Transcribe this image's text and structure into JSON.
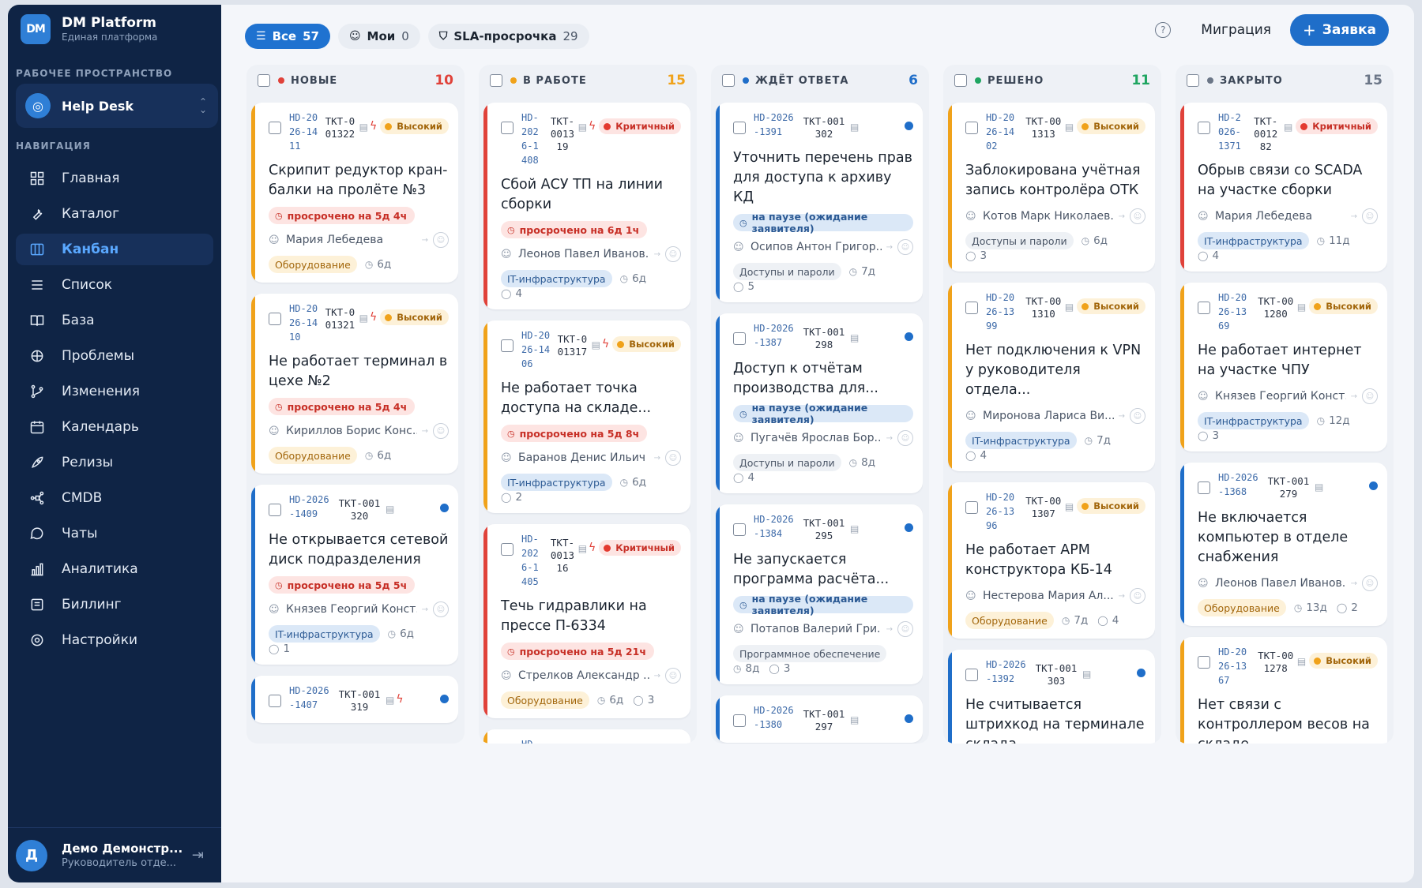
{
  "brand": {
    "logo": "DM",
    "title": "DM Platform",
    "subtitle": "Единая платформа"
  },
  "sidebar": {
    "workspace_label": "РАБОЧЕЕ ПРОСТРАНСТВО",
    "workspace_name": "Help Desk",
    "nav_label": "НАВИГАЦИЯ",
    "items": [
      {
        "label": "Главная",
        "icon": "grid-icon"
      },
      {
        "label": "Каталог",
        "icon": "wrench-icon"
      },
      {
        "label": "Канбан",
        "icon": "kanban-icon",
        "active": true
      },
      {
        "label": "Список",
        "icon": "list-icon"
      },
      {
        "label": "База",
        "icon": "book-icon"
      },
      {
        "label": "Проблемы",
        "icon": "bug-icon"
      },
      {
        "label": "Изменения",
        "icon": "branch-icon"
      },
      {
        "label": "Календарь",
        "icon": "calendar-icon"
      },
      {
        "label": "Релизы",
        "icon": "rocket-icon"
      },
      {
        "label": "CMDB",
        "icon": "network-icon"
      },
      {
        "label": "Чаты",
        "icon": "chat-icon"
      },
      {
        "label": "Аналитика",
        "icon": "bar-chart-icon"
      },
      {
        "label": "Биллинг",
        "icon": "receipt-icon"
      },
      {
        "label": "Настройки",
        "icon": "gear-icon"
      }
    ],
    "user": {
      "initial": "Д",
      "name": "Демо Демонстр...",
      "role": "Руководитель отде..."
    }
  },
  "filters": [
    {
      "label": "Все",
      "count": "57",
      "active": true
    },
    {
      "label": "Мои",
      "count": "0"
    },
    {
      "label": "SLA-просрочка",
      "count": "29"
    }
  ],
  "topbar": {
    "migration": "Миграция",
    "new_ticket": "Заявка"
  },
  "columns": [
    {
      "title": "НОВЫЕ",
      "count": "10",
      "color": "#e0423a",
      "cards": [
        {
          "hd": "HD-2026-1411",
          "tkt": "TKT-001322",
          "bolt": true,
          "priority": "Высокий",
          "ptype": "high",
          "stripe": "#f0a21a",
          "title": "Скрипит редуктор кран-балки на пролёте №3",
          "overdue": "просрочено на 5д 4ч",
          "person": "Мария Лебедева",
          "tag": "Оборудование",
          "tagtype": "equip",
          "age": "6д"
        },
        {
          "hd": "HD-2026-1410",
          "tkt": "TKT-001321",
          "bolt": true,
          "priority": "Высокий",
          "ptype": "high",
          "stripe": "#f0a21a",
          "title": "Не работает терминал в цехе №2",
          "overdue": "просрочено на 5д 4ч",
          "person": "Кириллов Борис Конс...",
          "tag": "Оборудование",
          "tagtype": "equip",
          "age": "6д"
        },
        {
          "hd": "HD-2026-1409",
          "tkt": "TKT-001320",
          "dot": true,
          "stripe": "#1f6ec9",
          "title": "Не открывается сетевой диск подразделения",
          "overdue": "просрочено на 5д 5ч",
          "person": "Князев Георгий Конст...",
          "tag": "IT-инфраструктура",
          "tagtype": "it",
          "age": "6д",
          "comments": "1"
        },
        {
          "hd": "HD-2026-1407",
          "tkt": "TKT-001319",
          "bolt": true,
          "dot": true,
          "stripe": "#1f6ec9",
          "title": ""
        }
      ]
    },
    {
      "title": "В РАБОТЕ",
      "count": "15",
      "color": "#f0a21a",
      "cards": [
        {
          "hd": "HD-2026-1408",
          "tkt": "TKT-001319",
          "bolt": true,
          "priority": "Критичный",
          "ptype": "crit",
          "stripe": "#e0423a",
          "title": "Сбой АСУ ТП на линии сборки",
          "overdue": "просрочено на 6д 1ч",
          "person": "Леонов Павел Иванов...",
          "tag": "IT-инфраструктура",
          "tagtype": "it",
          "age": "6д",
          "comments": "4"
        },
        {
          "hd": "HD-2026-1406",
          "tkt": "TKT-001317",
          "bolt": true,
          "priority": "Высокий",
          "ptype": "high",
          "stripe": "#f0a21a",
          "title": "Не работает точка доступа на складе...",
          "overdue": "просрочено на 5д 8ч",
          "person": "Баранов Денис Ильич",
          "tag": "IT-инфраструктура",
          "tagtype": "it",
          "age": "6д",
          "comments": "2"
        },
        {
          "hd": "HD-2026-1405",
          "tkt": "TKT-001316",
          "bolt": true,
          "priority": "Критичный",
          "ptype": "crit",
          "stripe": "#e0423a",
          "title": "Течь гидравлики на прессе П-6334",
          "overdue": "просрочено на 5д 21ч",
          "person": "Стрелков Александр ...",
          "tag": "Оборудование",
          "tagtype": "equip",
          "age": "6д",
          "comments": "3"
        },
        {
          "hd": "HD-",
          "stripe": "#f0a21a",
          "title": ""
        }
      ]
    },
    {
      "title": "ЖДЁТ ОТВЕТА",
      "count": "6",
      "color": "#1f6ec9",
      "cards": [
        {
          "hd": "HD-2026-1391",
          "tkt": "TKT-001302",
          "dot": true,
          "stripe": "#1f6ec9",
          "title": "Уточнить перечень прав для доступа к архиву КД",
          "paused": "на паузе (ожидание заявителя)",
          "person": "Осипов Антон Григор...",
          "tag": "Доступы и пароли",
          "tagtype": "access",
          "age": "7д",
          "comments": "5"
        },
        {
          "hd": "HD-2026-1387",
          "tkt": "TKT-001298",
          "dot": true,
          "stripe": "#1f6ec9",
          "title": "Доступ к отчётам производства для...",
          "paused": "на паузе (ожидание заявителя)",
          "person": "Пугачёв Ярослав Бор...",
          "tag": "Доступы и пароли",
          "tagtype": "access",
          "age": "8д",
          "comments": "4"
        },
        {
          "hd": "HD-2026-1384",
          "tkt": "TKT-001295",
          "dot": true,
          "stripe": "#1f6ec9",
          "title": "Не запускается программа расчёта...",
          "paused": "на паузе (ожидание заявителя)",
          "person": "Потапов Валерий Гри...",
          "tag": "Программное обеспечение",
          "tagtype": "soft",
          "age": "8д",
          "comments": "3"
        },
        {
          "hd": "HD-2026-1380",
          "tkt": "TKT-001297",
          "dot": true,
          "stripe": "#1f6ec9",
          "title": ""
        }
      ]
    },
    {
      "title": "РЕШЕНО",
      "count": "11",
      "color": "#1fa561",
      "cards": [
        {
          "hd": "HD-2026-1402",
          "tkt": "TKT-001313",
          "priority": "Высокий",
          "ptype": "high",
          "stripe": "#f0a21a",
          "title": "Заблокирована учётная запись контролёра ОТК",
          "person": "Котов Марк Николаев...",
          "tag": "Доступы и пароли",
          "tagtype": "access",
          "age": "6д",
          "comments": "3"
        },
        {
          "hd": "HD-2026-1399",
          "tkt": "TKT-001310",
          "priority": "Высокий",
          "ptype": "high",
          "stripe": "#f0a21a",
          "title": "Нет подключения к VPN у руководителя отдела...",
          "person": "Миронова Лариса Ви...",
          "tag": "IT-инфраструктура",
          "tagtype": "it",
          "age": "7д",
          "comments": "4"
        },
        {
          "hd": "HD-2026-1396",
          "tkt": "TKT-001307",
          "priority": "Высокий",
          "ptype": "high",
          "stripe": "#f0a21a",
          "title": "Не работает АРМ конструктора КБ-14",
          "person": "Нестерова Мария Ал...",
          "tag": "Оборудование",
          "tagtype": "equip",
          "age": "7д",
          "comments": "4"
        },
        {
          "hd": "HD-2026-1392",
          "tkt": "TKT-001303",
          "dot": true,
          "stripe": "#1f6ec9",
          "title": "Не считывается штрихкод на терминале склада"
        }
      ]
    },
    {
      "title": "ЗАКРЫТО",
      "count": "15",
      "color": "#6b7687",
      "cards": [
        {
          "hd": "HD-2026-1371",
          "tkt": "TKT-001282",
          "priority": "Критичный",
          "ptype": "crit",
          "stripe": "#e0423a",
          "title": "Обрыв связи со SCADA на участке сборки",
          "person": "Мария Лебедева",
          "tag": "IT-инфраструктура",
          "tagtype": "it",
          "age": "11д",
          "comments": "4"
        },
        {
          "hd": "HD-2026-1369",
          "tkt": "TKT-001280",
          "priority": "Высокий",
          "ptype": "high",
          "stripe": "#f0a21a",
          "title": "Не работает интернет на участке ЧПУ",
          "person": "Князев Георгий Конст...",
          "tag": "IT-инфраструктура",
          "tagtype": "it",
          "age": "12д",
          "comments": "3"
        },
        {
          "hd": "HD-2026-1368",
          "tkt": "TKT-001279",
          "dot": true,
          "stripe": "#1f6ec9",
          "title": "Не включается компьютер в отделе снабжения",
          "person": "Леонов Павел Иванов...",
          "tag": "Оборудование",
          "tagtype": "equip",
          "age": "13д",
          "comments": "2"
        },
        {
          "hd": "HD-2026-1367",
          "tkt": "TKT-001278",
          "priority": "Высокий",
          "ptype": "high",
          "stripe": "#f0a21a",
          "title": "Нет связи с контроллером весов на складе"
        }
      ]
    }
  ]
}
